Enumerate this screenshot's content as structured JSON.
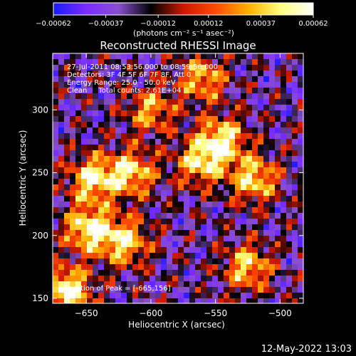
{
  "chart_data": {
    "type": "heatmap",
    "title": "Reconstructed RHESSI Image",
    "xlabel": "Heliocentric X (arcsec)",
    "ylabel": "Heliocentric Y (arcsec)",
    "xlim": [
      -676,
      -482
    ],
    "ylim": [
      146,
      345
    ],
    "xticks": [
      -650,
      -600,
      -550,
      -500
    ],
    "yticks": [
      150,
      200,
      250,
      300
    ],
    "xtick_labels": [
      "−650",
      "−600",
      "−550",
      "−500"
    ],
    "ytick_labels": [
      "150",
      "200",
      "250",
      "300"
    ],
    "colorbar": {
      "range": [
        -0.00062,
        0.00062
      ],
      "ticks": [
        -0.00062,
        -0.00037,
        -0.00012,
        0.00012,
        0.00037,
        0.00062
      ],
      "tick_labels": [
        "−0.00062",
        "−0.00037",
        "−0.00012",
        "0.00012",
        "0.00037",
        "0.00062"
      ],
      "unit_label": "(photons cm⁻² s⁻¹ asec⁻²)"
    },
    "colormap_stops": [
      "#1a1aff",
      "#7a2cff",
      "#8a4fd0",
      "#000000",
      "#cc1800",
      "#ff4c00",
      "#ffb000",
      "#ffff80",
      "#ffffff"
    ],
    "annotations": [
      "27-Jul-2011 08:53:56.000 to 08:59:56.000",
      "Detectors: 3F 4F 5F 6F 7F 8F, Att 0",
      "Energy Range: 25.0 - 50.0 keV",
      "Clean     Total counts: 2.61E+04"
    ],
    "peak_label": "Location of Peak = [-665,156]",
    "peak": [
      -665,
      156
    ],
    "bright_sources": [
      {
        "x": -665,
        "y": 156,
        "intensity": 0.00062
      },
      {
        "x": -648,
        "y": 205,
        "intensity": 0.00055
      },
      {
        "x": -620,
        "y": 195,
        "intensity": 0.00045
      },
      {
        "x": -645,
        "y": 245,
        "intensity": 0.0005
      },
      {
        "x": -615,
        "y": 250,
        "intensity": 0.00045
      },
      {
        "x": -545,
        "y": 276,
        "intensity": 0.0005
      },
      {
        "x": -562,
        "y": 258,
        "intensity": 0.0004
      },
      {
        "x": -520,
        "y": 245,
        "intensity": 0.00045
      },
      {
        "x": -560,
        "y": 325,
        "intensity": 0.00035
      },
      {
        "x": -525,
        "y": 175,
        "intensity": 0.0004
      },
      {
        "x": -600,
        "y": 300,
        "intensity": 0.0003
      }
    ]
  },
  "footer": {
    "timestamp": "12-May-2022 13:03"
  }
}
